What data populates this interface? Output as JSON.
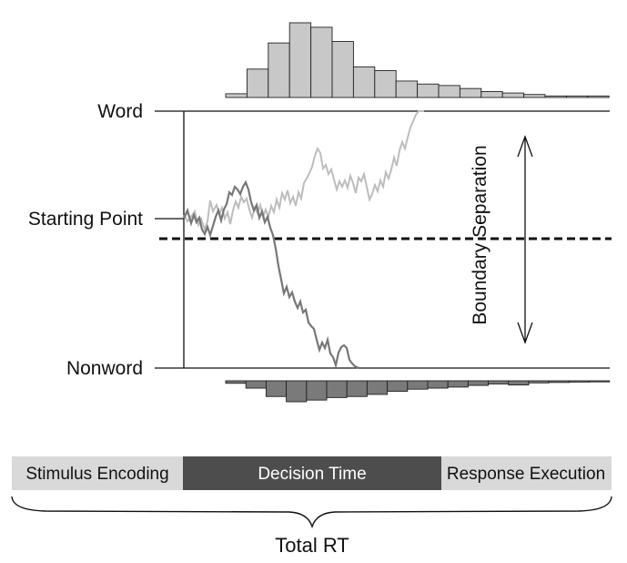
{
  "boundaries": {
    "upper_label": "Word",
    "start_label": "Starting Point",
    "lower_label": "Nonword"
  },
  "boundary_separation_label": "Boundary Separation",
  "upper_histogram": {
    "color": "#c8c8c8",
    "relative_heights": [
      0.05,
      0.38,
      0.73,
      1.0,
      0.94,
      0.75,
      0.41,
      0.36,
      0.22,
      0.18,
      0.16,
      0.12,
      0.08,
      0.06,
      0.04,
      0.02,
      0.02,
      0.02
    ]
  },
  "lower_histogram": {
    "color": "#7a7a7a",
    "relative_heights": [
      0.12,
      0.35,
      0.75,
      1.0,
      0.92,
      0.8,
      0.75,
      0.65,
      0.5,
      0.4,
      0.35,
      0.3,
      0.22,
      0.15,
      0.2,
      0.1,
      0.08,
      0.06,
      0.05
    ]
  },
  "paths": {
    "word_path_color": "#bdbdbd",
    "nonword_path_color": "#777777"
  },
  "phases": [
    {
      "label": "Stimulus Encoding",
      "bg": "#d9d9d9",
      "fg": "#111111"
    },
    {
      "label": "Decision Time",
      "bg": "#4d4d4d",
      "fg": "#ffffff"
    },
    {
      "label": "Response Execution",
      "bg": "#d9d9d9",
      "fg": "#111111"
    }
  ],
  "total_label": "Total RT"
}
